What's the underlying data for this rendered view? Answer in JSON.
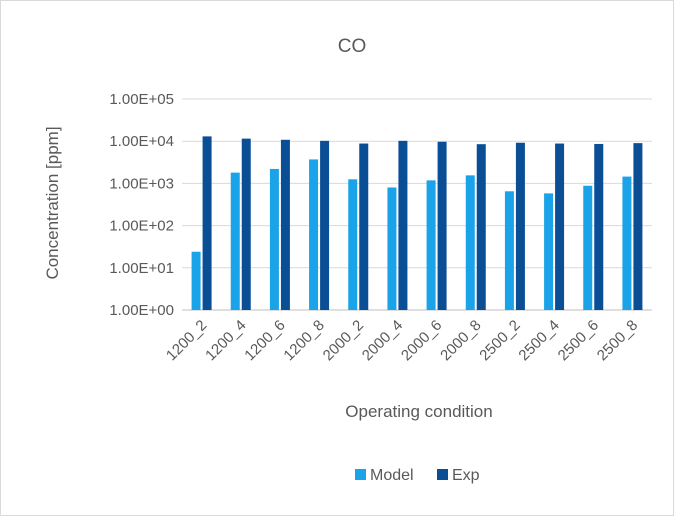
{
  "chart_data": {
    "type": "bar",
    "title": "CO",
    "xlabel": "Operating condition",
    "ylabel": "Concentration [ppm]",
    "yscale": "log",
    "ylim": [
      1,
      100000
    ],
    "y_tick_labels": [
      "1.00E+00",
      "1.00E+01",
      "1.00E+02",
      "1.00E+03",
      "1.00E+04",
      "1.00E+05"
    ],
    "categories": [
      "1200_2",
      "1200_4",
      "1200_6",
      "1200_8",
      "2000_2",
      "2000_4",
      "2000_6",
      "2000_8",
      "2500_2",
      "2500_4",
      "2500_6",
      "2500_8"
    ],
    "series": [
      {
        "name": "Model",
        "color": "#1aa3e8",
        "values": [
          24,
          1800,
          2200,
          3700,
          1250,
          800,
          1180,
          1550,
          650,
          580,
          880,
          1450
        ]
      },
      {
        "name": "Exp",
        "color": "#0a4f96",
        "values": [
          13000,
          11500,
          10800,
          10200,
          8800,
          10200,
          9700,
          8500,
          9200,
          8800,
          8600,
          9000
        ]
      }
    ],
    "grid": true,
    "legend_position": "bottom"
  }
}
